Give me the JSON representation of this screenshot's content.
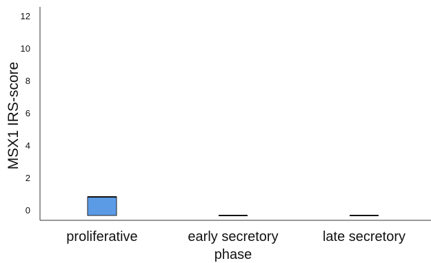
{
  "chart_data": {
    "type": "box",
    "ylabel": "MSX1 IRS-score",
    "xlabel": "",
    "ylim": [
      -0.6,
      12.6
    ],
    "yticks": [
      0,
      2,
      4,
      6,
      8,
      10,
      12
    ],
    "categories": [
      {
        "lines": [
          "proliferative"
        ]
      },
      {
        "lines": [
          "early secretory",
          "phase"
        ]
      },
      {
        "lines": [
          "late secretory"
        ]
      }
    ],
    "boxes": [
      {
        "category": "proliferative",
        "q1": -0.3,
        "q3": 0.85,
        "fill": "#5b9be6"
      },
      {
        "category": "early secretory phase",
        "q1": -0.3,
        "q3": -0.3,
        "fill": "#5b9be6"
      },
      {
        "category": "late secretory",
        "q1": -0.3,
        "q3": -0.3,
        "fill": "#5b9be6"
      }
    ],
    "grid": false
  }
}
